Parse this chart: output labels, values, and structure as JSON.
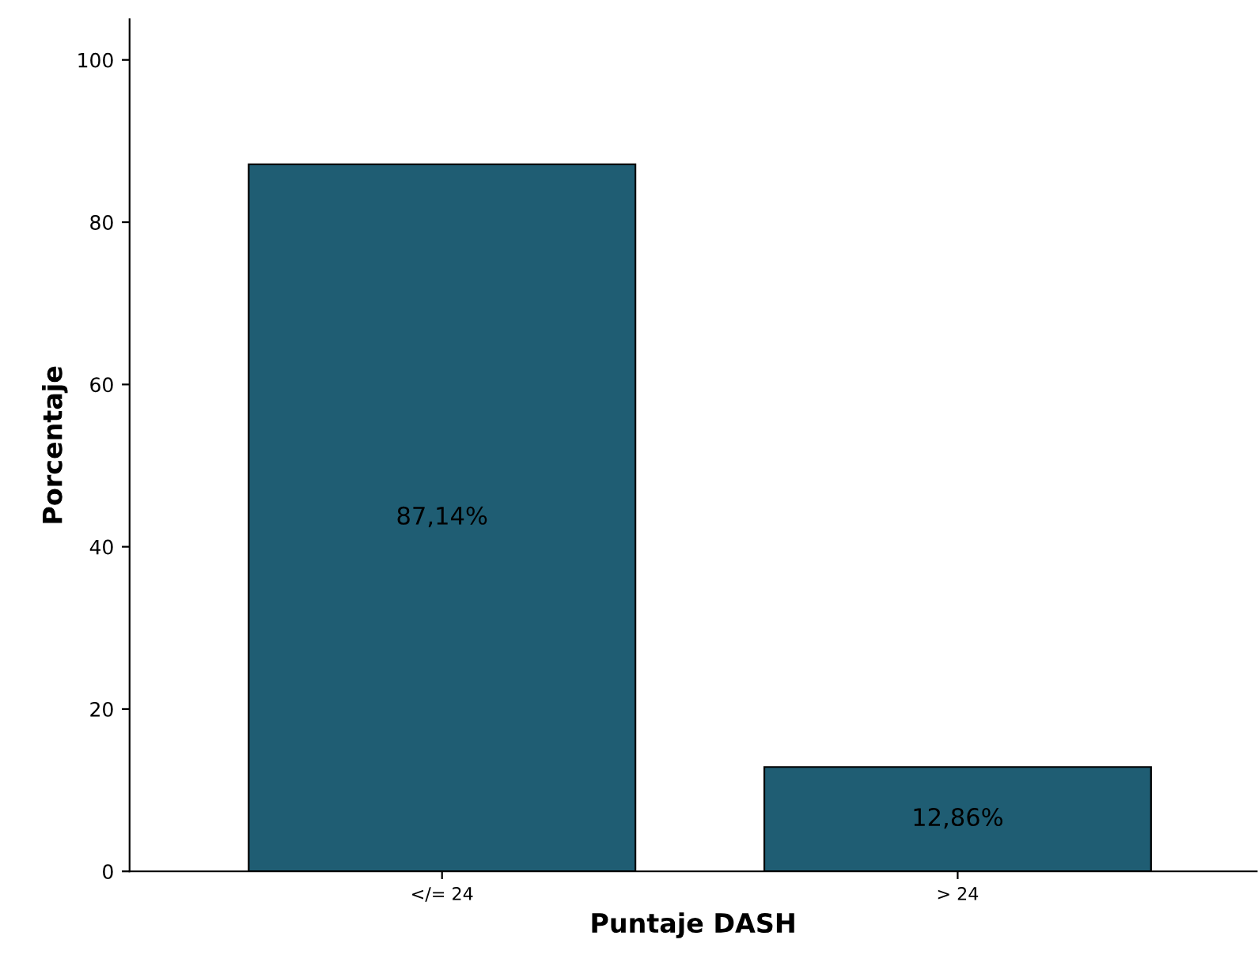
{
  "chart_data": {
    "type": "bar",
    "xlabel": "Puntaje DASH",
    "ylabel": "Porcentaje",
    "categories": [
      "</= 24",
      "> 24"
    ],
    "values": [
      87.14,
      12.86
    ],
    "value_labels": [
      "87,14%",
      "12,86%"
    ],
    "color": "#1f5d73",
    "ylim": [
      0,
      105
    ],
    "yticks": [
      0,
      20,
      40,
      60,
      80,
      100
    ],
    "grid": false
  }
}
